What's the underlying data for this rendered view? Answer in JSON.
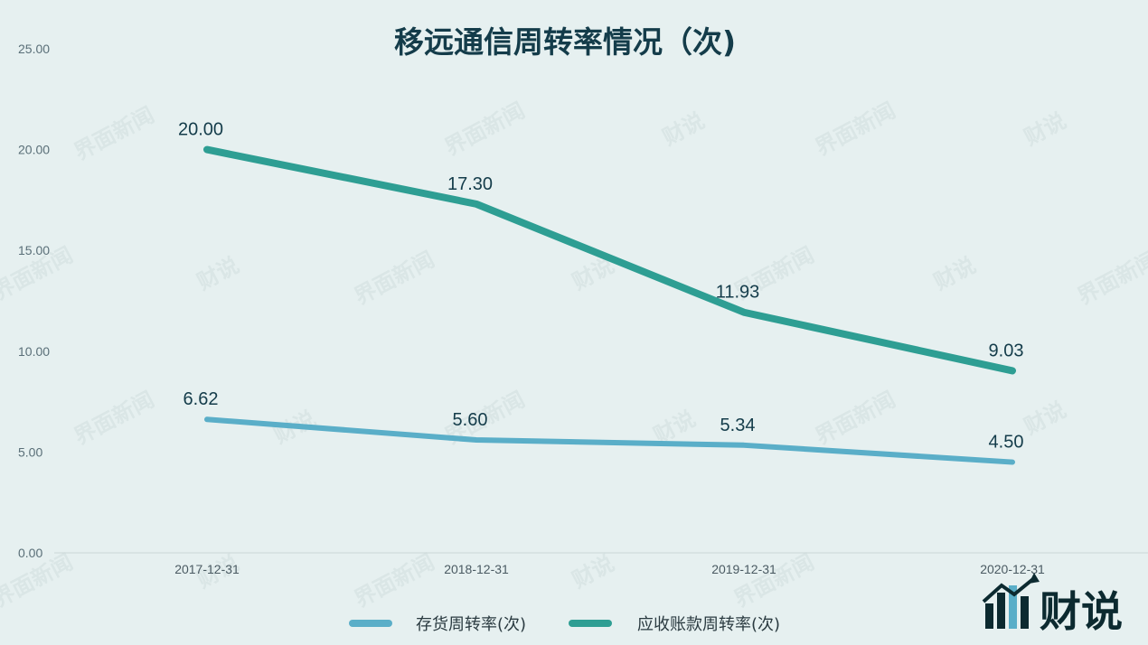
{
  "chart_data": {
    "type": "line",
    "title": "移远通信周转率情况（次)",
    "categories": [
      "2017-12-31",
      "2018-12-31",
      "2019-12-31",
      "2020-12-31"
    ],
    "y_ticks": [
      "0.00",
      "5.00",
      "10.00",
      "15.00",
      "20.00",
      "25.00"
    ],
    "ylim": [
      0,
      25
    ],
    "grid": false,
    "legend_position": "bottom",
    "series": [
      {
        "name": "存货周转率(次)",
        "color": "#5aaec8",
        "values": [
          6.62,
          5.6,
          5.34,
          4.5
        ],
        "labels": [
          "6.62",
          "5.60",
          "5.34",
          "4.50"
        ]
      },
      {
        "name": "应收账款周转率(次)",
        "color": "#2e9e93",
        "values": [
          20.0,
          17.3,
          11.93,
          9.03
        ],
        "labels": [
          "20.00",
          "17.30",
          "11.93",
          "9.03"
        ]
      }
    ]
  },
  "watermark": {
    "text_a": "界面新闻",
    "text_b": "财说"
  },
  "brand_logo": {
    "text": "财说",
    "icon": "bar-chart-logo-icon"
  }
}
